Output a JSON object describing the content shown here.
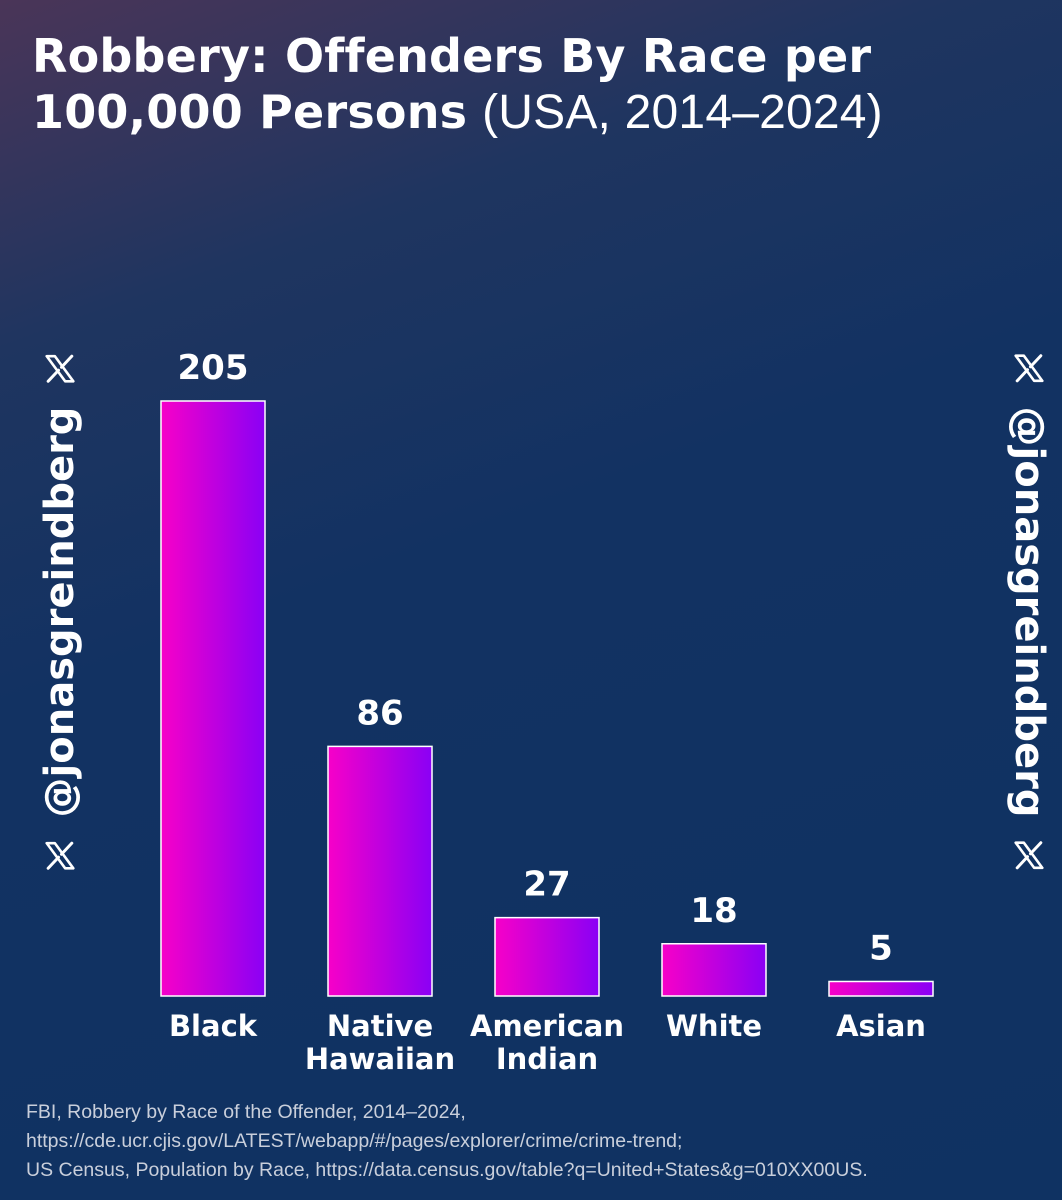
{
  "title": {
    "bold": "Robbery: Offenders By Race per 100,000 Persons",
    "light": "(USA, 2014–2024)"
  },
  "watermark": {
    "handle": "@jonasgreindberg",
    "icon": "x-logo-icon"
  },
  "source_lines": [
    "FBI, Robbery by Race of the Offender, 2014–2024,",
    "https://cde.ucr.cjis.gov/LATEST/webapp/#/pages/explorer/crime/crime-trend;",
    "US Census, Population by Race, https://data.census.gov/table?q=United+States&g=010XX00US."
  ],
  "colors": {
    "bar_gradient_start": "#f700c8",
    "bar_gradient_end": "#8a00f5",
    "bar_outline": "#ffffff",
    "text": "#ffffff"
  },
  "chart_data": {
    "type": "bar",
    "title": "Robbery: Offenders By Race per 100,000 Persons (USA, 2014–2024)",
    "categories": [
      [
        "Black"
      ],
      [
        "Native",
        "Hawaiian"
      ],
      [
        "American",
        "Indian"
      ],
      [
        "White"
      ],
      [
        "Asian"
      ]
    ],
    "values": [
      205,
      86,
      27,
      18,
      5
    ],
    "ylim": [
      0,
      205
    ],
    "xlabel": "",
    "ylabel": "",
    "grid": false,
    "legend": "none"
  }
}
